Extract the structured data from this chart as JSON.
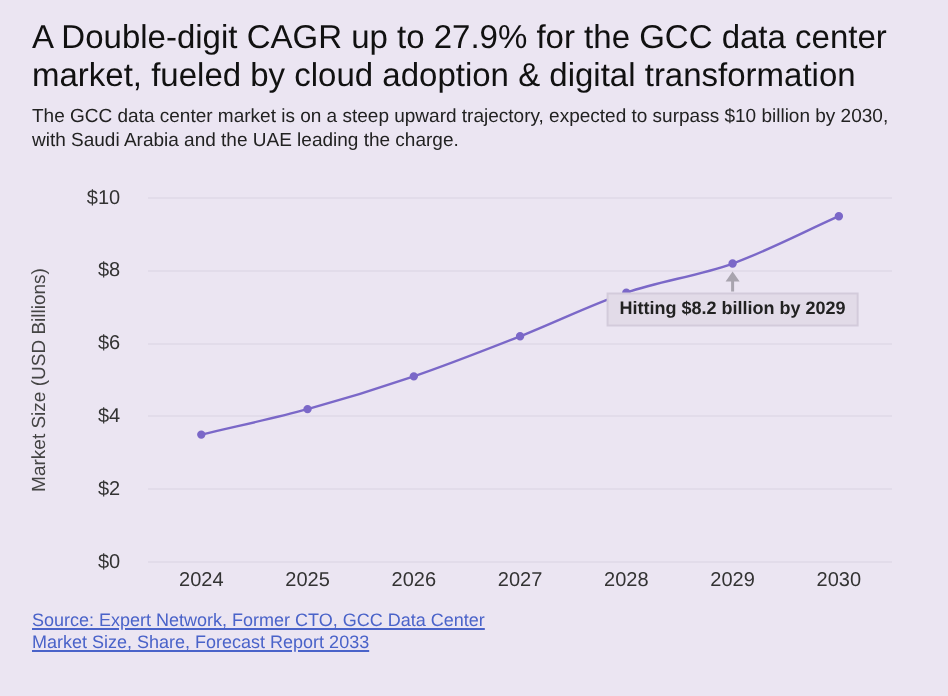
{
  "chart_data": {
    "type": "line",
    "title": "A Double-digit CAGR up to 27.9% for the GCC data center market, fueled by cloud adoption & digital transformation",
    "subtitle": "The GCC data center market is on a steep upward trajectory, expected to surpass $10 billion by 2030, with Saudi Arabia and the UAE leading the charge.",
    "ylabel": "Market Size (USD Billions)",
    "categories": [
      "2024",
      "2025",
      "2026",
      "2027",
      "2028",
      "2029",
      "2030"
    ],
    "series": [
      {
        "color": "#7b68c8",
        "values": [
          3.5,
          4.2,
          5.1,
          6.2,
          7.4,
          8.2,
          9.5
        ]
      }
    ],
    "ylim": [
      0,
      10
    ],
    "yticks": [
      {
        "value": 0,
        "label": "$0"
      },
      {
        "value": 2,
        "label": "$2"
      },
      {
        "value": 4,
        "label": "$4"
      },
      {
        "value": 6,
        "label": "$6"
      },
      {
        "value": 8,
        "label": "$8"
      },
      {
        "value": 10,
        "label": "$10"
      }
    ],
    "grid": "y",
    "legend": false,
    "marker": "circle",
    "line_style": "solid",
    "annotations": [
      {
        "text": "Hitting $8.2 billion by 2029",
        "x": "2029",
        "y": 8.2
      },
      "Source: Expert Network, Former CTO, GCC Data Center Market Size, Share, Forecast Report 2033"
    ]
  }
}
